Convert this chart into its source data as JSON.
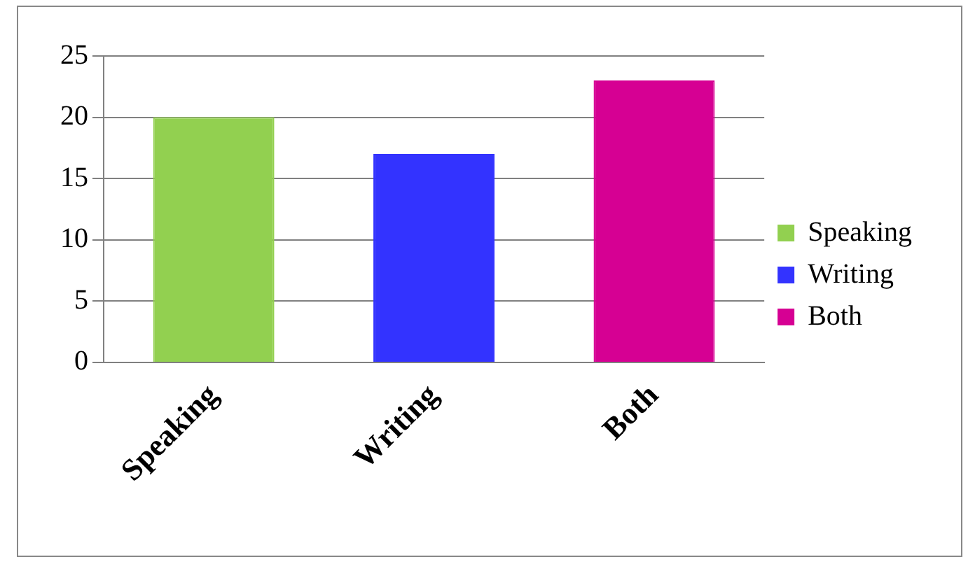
{
  "chart_data": {
    "type": "bar",
    "categories": [
      "Speaking",
      "Writing",
      "Both"
    ],
    "series": [
      {
        "name": "Speaking",
        "color": "#92d050",
        "values": [
          20,
          null,
          null
        ]
      },
      {
        "name": "Writing",
        "color": "#3333ff",
        "values": [
          null,
          17,
          null
        ]
      },
      {
        "name": "Both",
        "color": "#d60093",
        "values": [
          null,
          null,
          23
        ]
      }
    ],
    "ylim": [
      0,
      25
    ],
    "yticks": [
      0,
      5,
      10,
      15,
      20,
      25
    ],
    "grid": "y",
    "legend": "right"
  }
}
